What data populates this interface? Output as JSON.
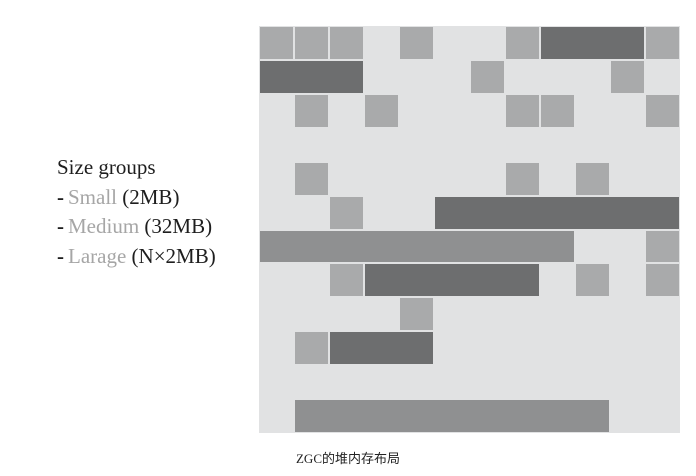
{
  "legend": {
    "title": "Size groups",
    "items": [
      {
        "dash": "-",
        "name": "Small",
        "detail": "(2MB)"
      },
      {
        "dash": "-",
        "name": "Medium",
        "detail": "(32MB)"
      },
      {
        "dash": "-",
        "name": "Larage",
        "detail": "(N×2MB)"
      }
    ]
  },
  "caption": "ZGC的堆内存布局",
  "colors": {
    "heap_background": "#e1e2e3",
    "small": "#a9aaab",
    "medium": "#6d6e6f",
    "large": "#8f9091"
  },
  "heap_grid": {
    "columns": 12,
    "rows": 12,
    "regions": [
      {
        "kind": "small",
        "row": 0,
        "col": 0,
        "span": 1
      },
      {
        "kind": "small",
        "row": 0,
        "col": 1,
        "span": 1
      },
      {
        "kind": "small",
        "row": 0,
        "col": 2,
        "span": 1
      },
      {
        "kind": "small",
        "row": 0,
        "col": 4,
        "span": 1
      },
      {
        "kind": "small",
        "row": 0,
        "col": 7,
        "span": 1
      },
      {
        "kind": "medium",
        "row": 0,
        "col": 8,
        "span": 3
      },
      {
        "kind": "small",
        "row": 0,
        "col": 11,
        "span": 1
      },
      {
        "kind": "medium",
        "row": 1,
        "col": 0,
        "span": 3
      },
      {
        "kind": "small",
        "row": 1,
        "col": 6,
        "span": 1
      },
      {
        "kind": "small",
        "row": 1,
        "col": 10,
        "span": 1
      },
      {
        "kind": "small",
        "row": 2,
        "col": 1,
        "span": 1
      },
      {
        "kind": "small",
        "row": 2,
        "col": 3,
        "span": 1
      },
      {
        "kind": "small",
        "row": 2,
        "col": 7,
        "span": 1
      },
      {
        "kind": "small",
        "row": 2,
        "col": 8,
        "span": 1
      },
      {
        "kind": "small",
        "row": 2,
        "col": 11,
        "span": 1
      },
      {
        "kind": "small",
        "row": 4,
        "col": 1,
        "span": 1
      },
      {
        "kind": "small",
        "row": 4,
        "col": 7,
        "span": 1
      },
      {
        "kind": "small",
        "row": 4,
        "col": 9,
        "span": 1
      },
      {
        "kind": "small",
        "row": 5,
        "col": 2,
        "span": 1
      },
      {
        "kind": "medium",
        "row": 5,
        "col": 5,
        "span": 7
      },
      {
        "kind": "large",
        "row": 6,
        "col": 0,
        "span": 9
      },
      {
        "kind": "small",
        "row": 6,
        "col": 11,
        "span": 1
      },
      {
        "kind": "small",
        "row": 7,
        "col": 2,
        "span": 1
      },
      {
        "kind": "medium",
        "row": 7,
        "col": 3,
        "span": 5
      },
      {
        "kind": "small",
        "row": 7,
        "col": 9,
        "span": 1
      },
      {
        "kind": "small",
        "row": 7,
        "col": 11,
        "span": 1
      },
      {
        "kind": "small",
        "row": 8,
        "col": 4,
        "span": 1
      },
      {
        "kind": "small",
        "row": 9,
        "col": 1,
        "span": 1
      },
      {
        "kind": "medium",
        "row": 9,
        "col": 2,
        "span": 3
      },
      {
        "kind": "large",
        "row": 11,
        "col": 1,
        "span": 9
      }
    ]
  }
}
